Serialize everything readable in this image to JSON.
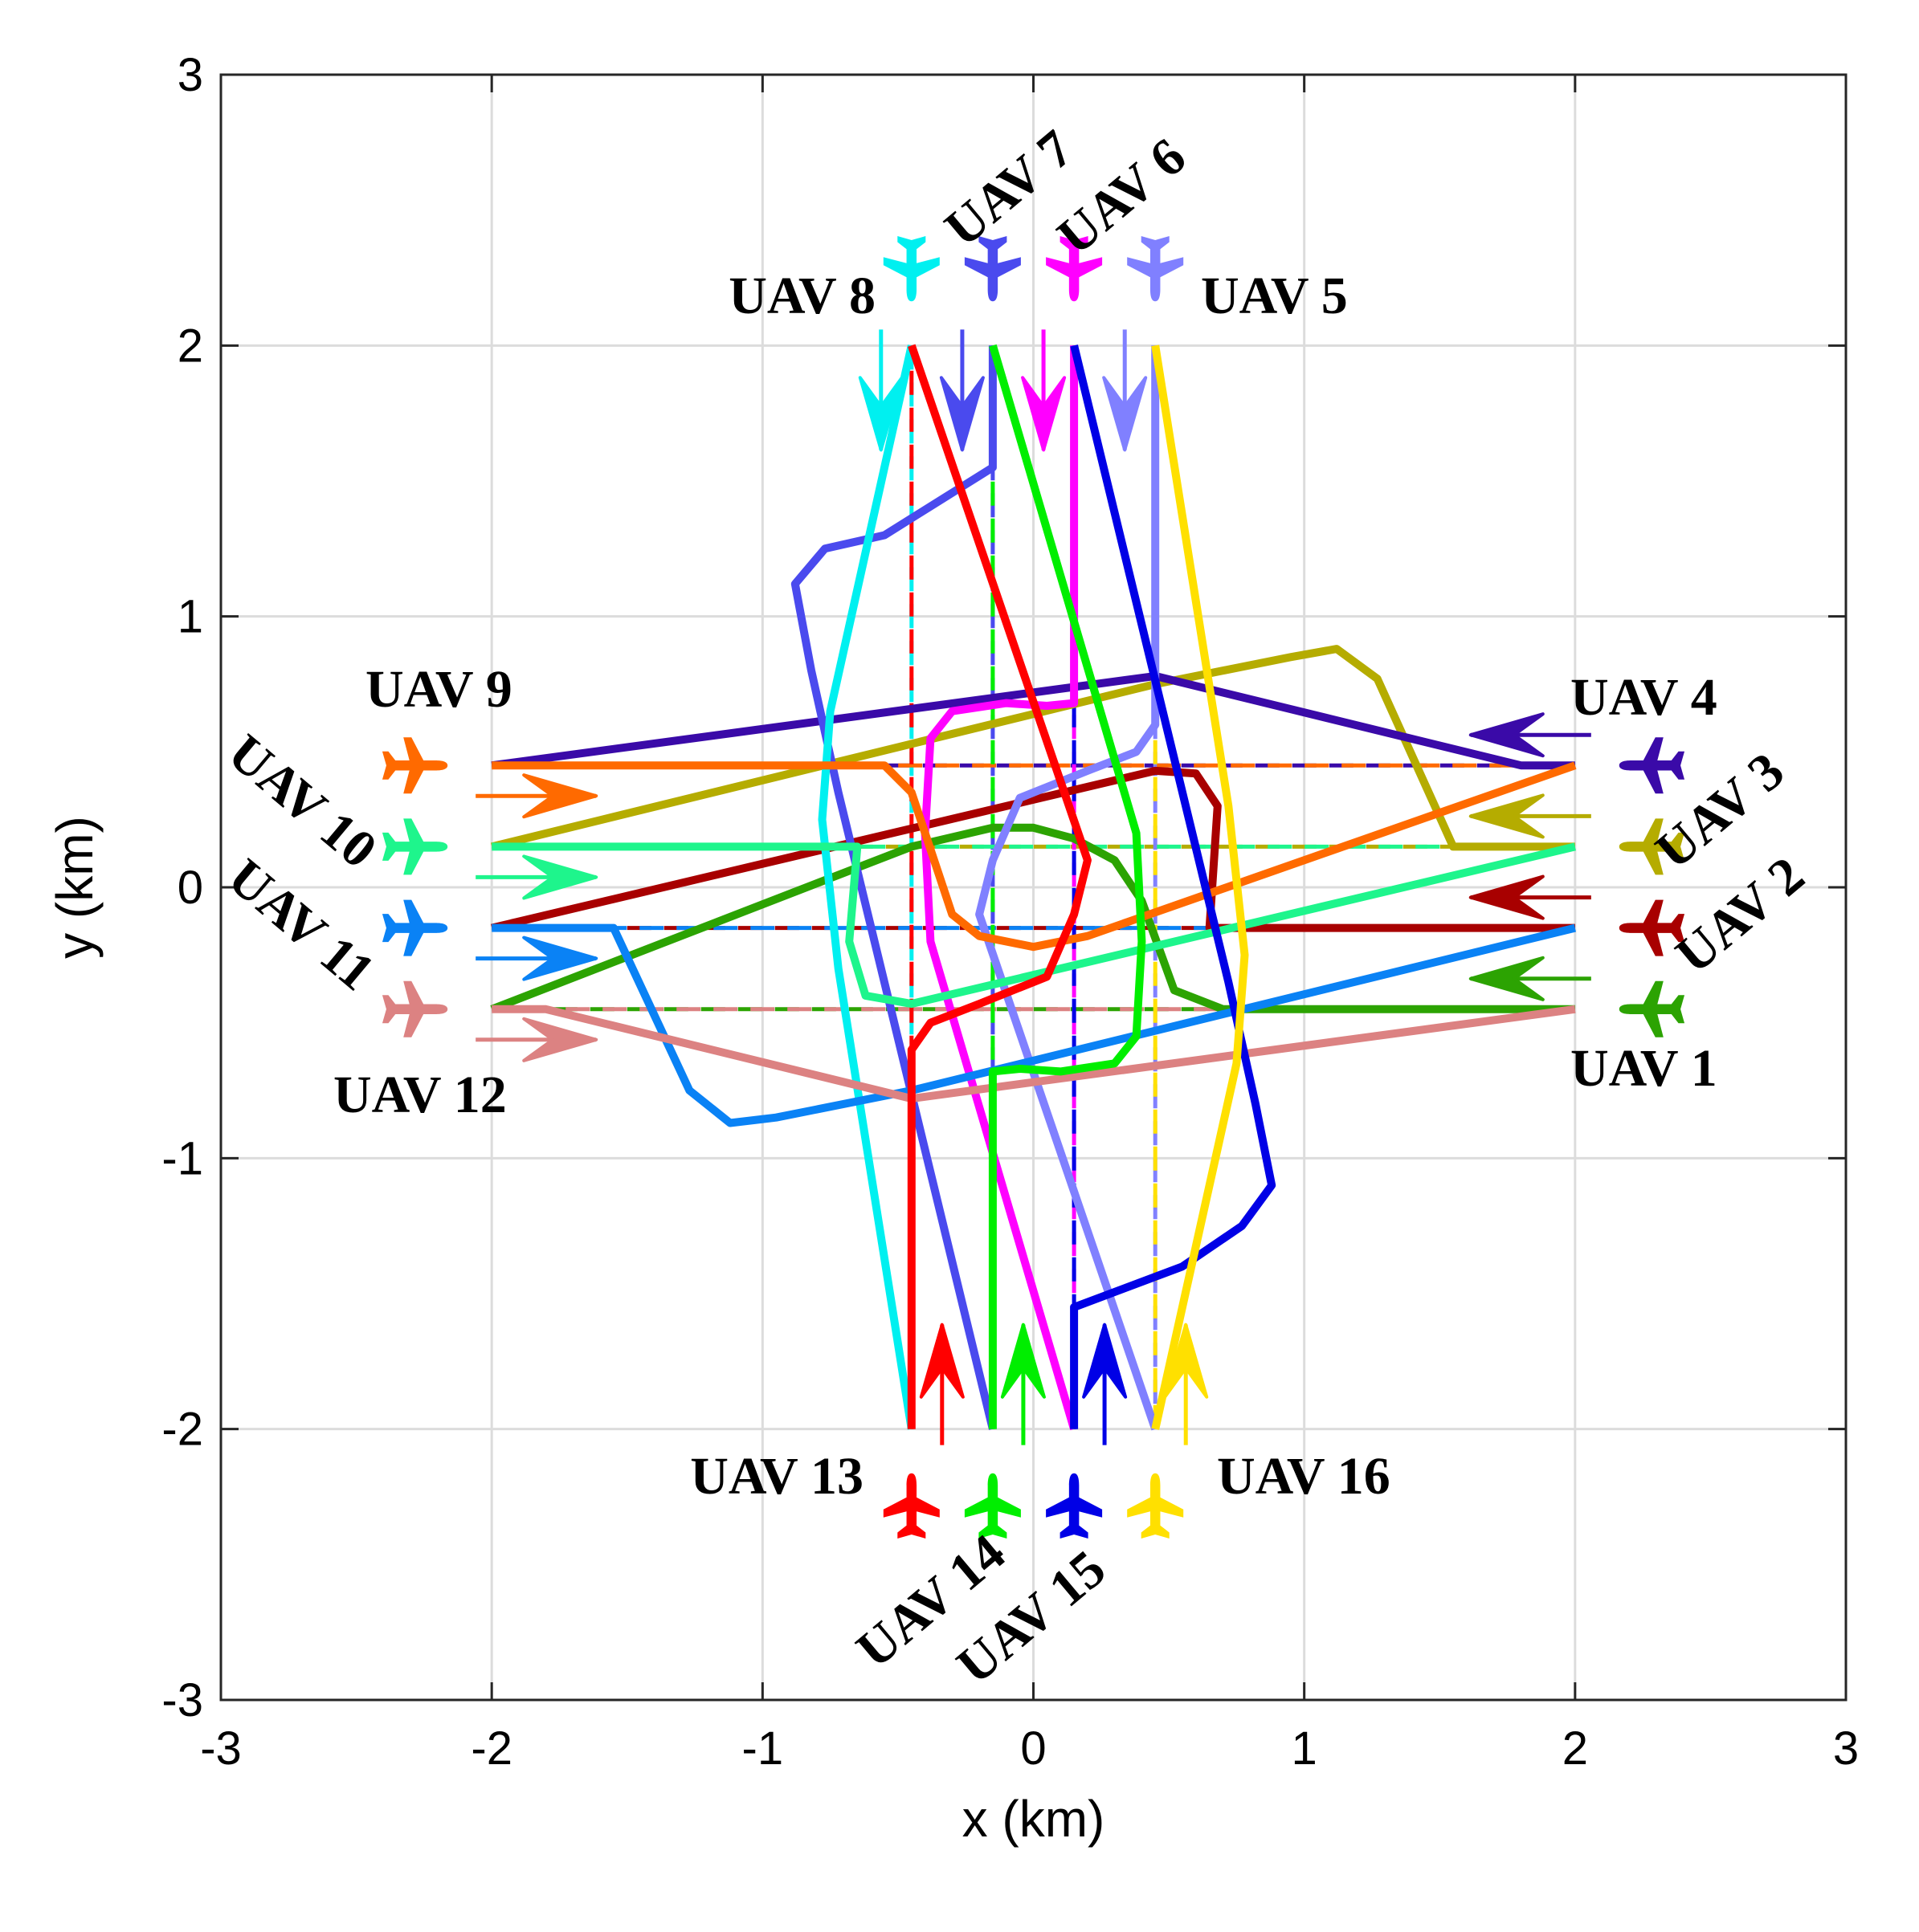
{
  "chart_data": {
    "type": "line",
    "title": "",
    "xlabel": "x (km)",
    "ylabel": "y (km)",
    "xlim": [
      -3,
      3
    ],
    "ylim": [
      -3,
      3
    ],
    "xticks": [
      -3,
      -2,
      -1,
      0,
      1,
      2,
      3
    ],
    "yticks": [
      -3,
      -2,
      -1,
      0,
      1,
      2,
      3
    ],
    "xtick_labels": [
      "-3",
      "-2",
      "-1",
      "0",
      "1",
      "2",
      "3"
    ],
    "ytick_labels": [
      "-3",
      "-2",
      "-1",
      "0",
      "1",
      "2",
      "3"
    ],
    "grid": true,
    "series": [
      {
        "name": "UAV 1",
        "color": "#2ca302",
        "dir": "left",
        "straight": [
          [
            2.0,
            -0.45
          ],
          [
            -2.0,
            -0.45
          ]
        ],
        "path": [
          [
            2.0,
            -0.45
          ],
          [
            0.7,
            -0.45
          ],
          [
            0.52,
            -0.38
          ],
          [
            0.4,
            -0.05
          ],
          [
            0.3,
            0.1
          ],
          [
            0.15,
            0.18
          ],
          [
            0.0,
            0.22
          ],
          [
            -0.15,
            0.22
          ],
          [
            -0.45,
            0.15
          ],
          [
            -2.0,
            -0.45
          ]
        ]
      },
      {
        "name": "UAV 2",
        "color": "#a80000",
        "dir": "left",
        "straight": [
          [
            2.0,
            -0.15
          ],
          [
            -2.0,
            -0.15
          ]
        ],
        "path": [
          [
            2.0,
            -0.15
          ],
          [
            0.65,
            -0.15
          ],
          [
            0.68,
            0.3
          ],
          [
            0.6,
            0.42
          ],
          [
            0.45,
            0.43
          ],
          [
            -2.0,
            -0.15
          ]
        ]
      },
      {
        "name": "UAV 3",
        "color": "#b5ac00",
        "dir": "left",
        "straight": [
          [
            2.0,
            0.15
          ],
          [
            -2.0,
            0.15
          ]
        ],
        "path": [
          [
            2.0,
            0.15
          ],
          [
            1.55,
            0.15
          ],
          [
            1.27,
            0.77
          ],
          [
            1.12,
            0.88
          ],
          [
            0.95,
            0.85
          ],
          [
            0.45,
            0.75
          ],
          [
            -2.0,
            0.15
          ]
        ]
      },
      {
        "name": "UAV 4",
        "color": "#3a0aa8",
        "dir": "left",
        "straight": [
          [
            2.0,
            0.45
          ],
          [
            -2.0,
            0.45
          ]
        ],
        "path": [
          [
            2.0,
            0.45
          ],
          [
            1.8,
            0.45
          ],
          [
            0.45,
            0.78
          ],
          [
            -2.0,
            0.45
          ]
        ]
      },
      {
        "name": "UAV 5",
        "color": "#8080ff",
        "dir": "down",
        "straight": [
          [
            0.45,
            2.0
          ],
          [
            0.45,
            -2.0
          ]
        ],
        "path": [
          [
            0.45,
            2.0
          ],
          [
            0.45,
            0.6
          ],
          [
            0.38,
            0.5
          ],
          [
            0.2,
            0.43
          ],
          [
            -0.05,
            0.33
          ],
          [
            -0.15,
            0.1
          ],
          [
            -0.2,
            -0.1
          ],
          [
            0.45,
            -2.0
          ]
        ]
      },
      {
        "name": "UAV 6",
        "color": "#ff00ff",
        "dir": "down",
        "straight": [
          [
            0.15,
            2.0
          ],
          [
            0.15,
            -2.0
          ]
        ],
        "path": [
          [
            0.15,
            2.0
          ],
          [
            0.15,
            0.68
          ],
          [
            0.05,
            0.67
          ],
          [
            -0.1,
            0.68
          ],
          [
            -0.3,
            0.65
          ],
          [
            -0.38,
            0.55
          ],
          [
            -0.4,
            0.2
          ],
          [
            -0.38,
            -0.2
          ],
          [
            0.15,
            -2.0
          ]
        ]
      },
      {
        "name": "UAV 7",
        "color": "#4a4aee",
        "dir": "down",
        "straight": [
          [
            -0.15,
            2.0
          ],
          [
            -0.15,
            -2.0
          ]
        ],
        "path": [
          [
            -0.15,
            2.0
          ],
          [
            -0.15,
            1.55
          ],
          [
            -0.55,
            1.3
          ],
          [
            -0.77,
            1.25
          ],
          [
            -0.88,
            1.12
          ],
          [
            -0.82,
            0.8
          ],
          [
            -0.72,
            0.35
          ],
          [
            -0.15,
            -2.0
          ]
        ]
      },
      {
        "name": "UAV 8",
        "color": "#00f0f0",
        "dir": "down",
        "straight": [
          [
            -0.45,
            2.0
          ],
          [
            -0.45,
            -2.0
          ]
        ],
        "path": [
          [
            -0.45,
            2.0
          ],
          [
            -0.75,
            0.65
          ],
          [
            -0.78,
            0.25
          ],
          [
            -0.72,
            -0.3
          ],
          [
            -0.45,
            -2.0
          ]
        ]
      },
      {
        "name": "UAV 9",
        "color": "#ff6a00",
        "dir": "right",
        "straight": [
          [
            -2.0,
            0.45
          ],
          [
            2.0,
            0.45
          ]
        ],
        "path": [
          [
            -2.0,
            0.45
          ],
          [
            -0.55,
            0.45
          ],
          [
            -0.45,
            0.35
          ],
          [
            -0.35,
            0.05
          ],
          [
            -0.3,
            -0.1
          ],
          [
            -0.2,
            -0.18
          ],
          [
            0.0,
            -0.22
          ],
          [
            0.2,
            -0.18
          ],
          [
            2.0,
            0.45
          ]
        ]
      },
      {
        "name": "UAV 10",
        "color": "#1ef58c",
        "dir": "right",
        "straight": [
          [
            -2.0,
            0.15
          ],
          [
            2.0,
            0.15
          ]
        ],
        "path": [
          [
            -2.0,
            0.15
          ],
          [
            -0.65,
            0.15
          ],
          [
            -0.68,
            -0.2
          ],
          [
            -0.62,
            -0.4
          ],
          [
            -0.45,
            -0.43
          ],
          [
            2.0,
            0.15
          ]
        ]
      },
      {
        "name": "UAV 11",
        "color": "#0a82f5",
        "dir": "right",
        "straight": [
          [
            -2.0,
            -0.15
          ],
          [
            2.0,
            -0.15
          ]
        ],
        "path": [
          [
            -2.0,
            -0.15
          ],
          [
            -1.55,
            -0.15
          ],
          [
            -1.27,
            -0.75
          ],
          [
            -1.12,
            -0.87
          ],
          [
            -0.95,
            -0.85
          ],
          [
            -0.45,
            -0.75
          ],
          [
            2.0,
            -0.15
          ]
        ]
      },
      {
        "name": "UAV 12",
        "color": "#dc8282",
        "dir": "right",
        "straight": [
          [
            -2.0,
            -0.45
          ],
          [
            2.0,
            -0.45
          ]
        ],
        "path": [
          [
            -2.0,
            -0.45
          ],
          [
            -1.8,
            -0.45
          ],
          [
            -0.45,
            -0.78
          ],
          [
            2.0,
            -0.45
          ]
        ]
      },
      {
        "name": "UAV 13",
        "color": "#ff0000",
        "dir": "up",
        "straight": [
          [
            -0.45,
            -2.0
          ],
          [
            -0.45,
            2.0
          ]
        ],
        "path": [
          [
            -0.45,
            -2.0
          ],
          [
            -0.45,
            -0.6
          ],
          [
            -0.38,
            -0.5
          ],
          [
            -0.2,
            -0.43
          ],
          [
            0.05,
            -0.33
          ],
          [
            0.15,
            -0.1
          ],
          [
            0.2,
            0.1
          ],
          [
            -0.45,
            2.0
          ]
        ]
      },
      {
        "name": "UAV 14",
        "color": "#00ee00",
        "dir": "up",
        "straight": [
          [
            -0.15,
            -2.0
          ],
          [
            -0.15,
            2.0
          ]
        ],
        "path": [
          [
            -0.15,
            -2.0
          ],
          [
            -0.15,
            -0.68
          ],
          [
            -0.05,
            -0.67
          ],
          [
            0.1,
            -0.68
          ],
          [
            0.3,
            -0.65
          ],
          [
            0.38,
            -0.55
          ],
          [
            0.4,
            -0.2
          ],
          [
            0.38,
            0.2
          ],
          [
            -0.15,
            2.0
          ]
        ]
      },
      {
        "name": "UAV 15",
        "color": "#0000e6",
        "dir": "up",
        "straight": [
          [
            0.15,
            -2.0
          ],
          [
            0.15,
            2.0
          ]
        ],
        "path": [
          [
            0.15,
            -2.0
          ],
          [
            0.15,
            -1.55
          ],
          [
            0.55,
            -1.4
          ],
          [
            0.77,
            -1.25
          ],
          [
            0.88,
            -1.1
          ],
          [
            0.82,
            -0.8
          ],
          [
            0.72,
            -0.35
          ],
          [
            0.15,
            2.0
          ]
        ]
      },
      {
        "name": "UAV 16",
        "color": "#ffe000",
        "dir": "up",
        "straight": [
          [
            0.45,
            -2.0
          ],
          [
            0.45,
            2.0
          ]
        ],
        "path": [
          [
            0.45,
            -2.0
          ],
          [
            0.75,
            -0.65
          ],
          [
            0.78,
            -0.25
          ],
          [
            0.72,
            0.3
          ],
          [
            0.45,
            2.0
          ]
        ]
      }
    ]
  }
}
